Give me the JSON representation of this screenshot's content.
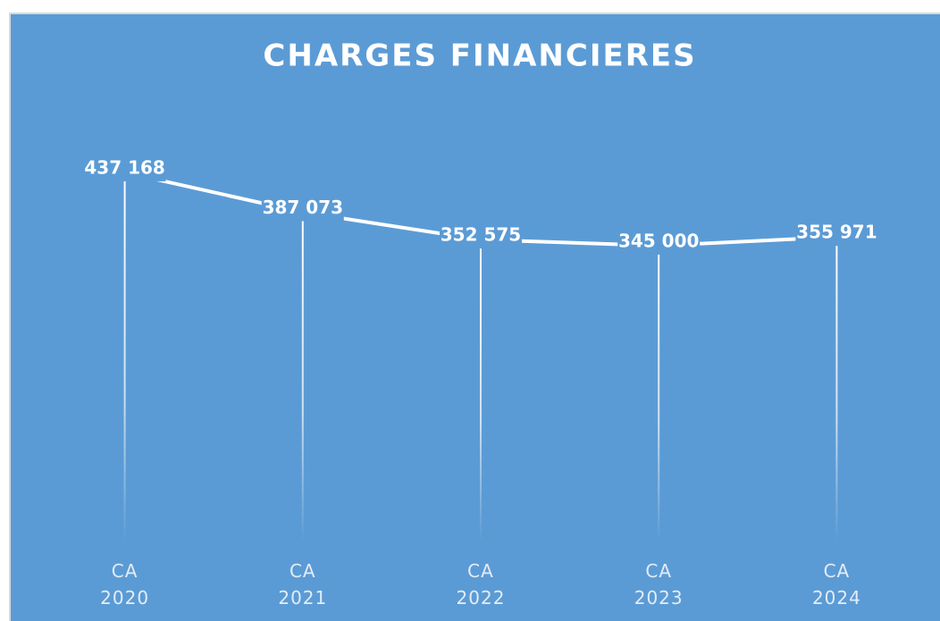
{
  "chart_data": {
    "type": "line",
    "title": "CHARGES FINANCIERES",
    "categories": [
      "CA 2020",
      "CA 2021",
      "CA 2022",
      "CA 2023",
      "CA 2024"
    ],
    "values": [
      437168,
      387073,
      352575,
      345000,
      355971
    ],
    "value_labels": [
      "437 168",
      "387 073",
      "352 575",
      "345 000",
      "355 971"
    ],
    "color": "#ffffff",
    "background": "#5b9bd5",
    "ylim": [
      0,
      500000
    ],
    "drop_lines": true
  }
}
